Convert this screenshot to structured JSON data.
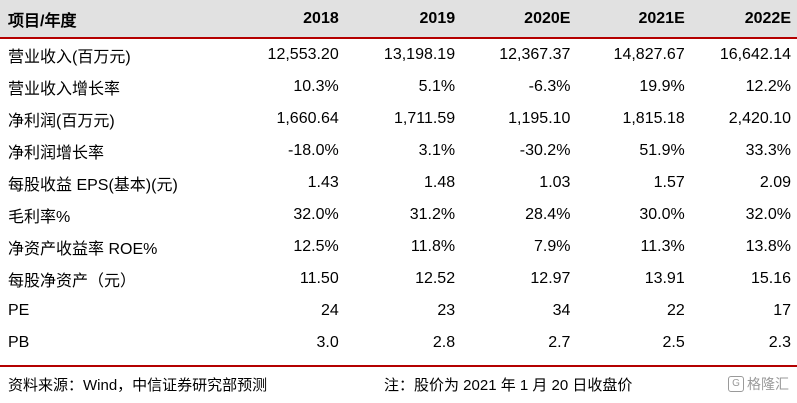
{
  "table": {
    "header": [
      "项目/年度",
      "2018",
      "2019",
      "2020E",
      "2021E",
      "2022E"
    ],
    "rows": [
      {
        "label": "营业收入(百万元)",
        "values": [
          "12,553.20",
          "13,198.19",
          "12,367.37",
          "14,827.67",
          "16,642.14"
        ]
      },
      {
        "label": "营业收入增长率",
        "values": [
          "10.3%",
          "5.1%",
          "-6.3%",
          "19.9%",
          "12.2%"
        ]
      },
      {
        "label": "净利润(百万元)",
        "values": [
          "1,660.64",
          "1,711.59",
          "1,195.10",
          "1,815.18",
          "2,420.10"
        ]
      },
      {
        "label": "净利润增长率",
        "values": [
          "-18.0%",
          "3.1%",
          "-30.2%",
          "51.9%",
          "33.3%"
        ]
      },
      {
        "label": "每股收益 EPS(基本)(元)",
        "values": [
          "1.43",
          "1.48",
          "1.03",
          "1.57",
          "2.09"
        ]
      },
      {
        "label": "毛利率%",
        "values": [
          "32.0%",
          "31.2%",
          "28.4%",
          "30.0%",
          "32.0%"
        ]
      },
      {
        "label": "净资产收益率 ROE%",
        "values": [
          "12.5%",
          "11.8%",
          "7.9%",
          "11.3%",
          "13.8%"
        ]
      },
      {
        "label": "每股净资产（元）",
        "values": [
          "11.50",
          "12.52",
          "12.97",
          "13.91",
          "15.16"
        ]
      },
      {
        "label": "PE",
        "values": [
          "24",
          "23",
          "34",
          "22",
          "17"
        ]
      },
      {
        "label": "PB",
        "values": [
          "3.0",
          "2.8",
          "2.7",
          "2.5",
          "2.3"
        ]
      }
    ]
  },
  "footer": {
    "source": "资料来源：Wind，中信证券研究部预测",
    "note": "注：股价为 2021 年 1 月 20 日收盘价",
    "watermark_logo": "G",
    "watermark_text": "格隆汇"
  },
  "colors": {
    "header_bg": "#e1e1e1",
    "accent_rule": "#b40000"
  }
}
